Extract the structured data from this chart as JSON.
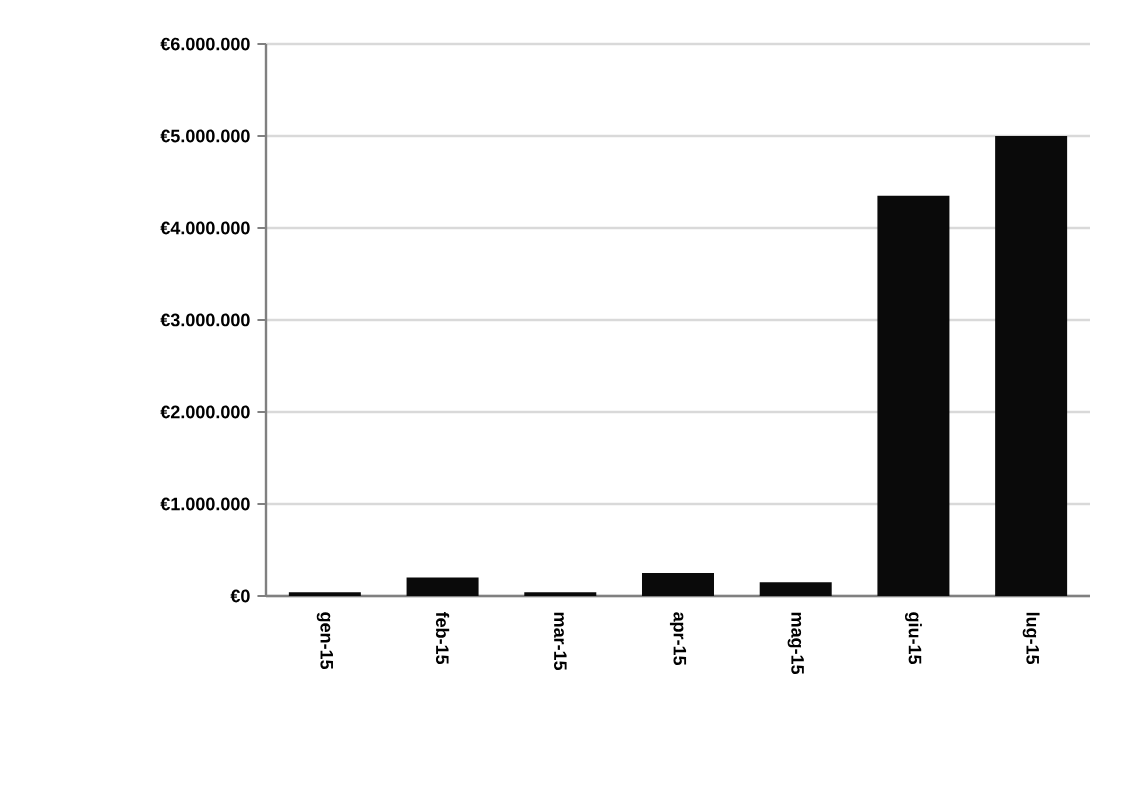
{
  "chart_data": {
    "type": "bar",
    "categories": [
      "gen-15",
      "feb-15",
      "mar-15",
      "apr-15",
      "mag-15",
      "giu-15",
      "lug-15"
    ],
    "values": [
      40000,
      200000,
      40000,
      250000,
      150000,
      4350000,
      5000000
    ],
    "color": "#0a0a0a",
    "ylim": [
      0,
      6000000
    ],
    "yticks": [
      {
        "value": 0,
        "label": "€0"
      },
      {
        "value": 1000000,
        "label": "€1.000.000"
      },
      {
        "value": 2000000,
        "label": "€2.000.000"
      },
      {
        "value": 3000000,
        "label": "€3.000.000"
      },
      {
        "value": 4000000,
        "label": "€4.000.000"
      },
      {
        "value": 5000000,
        "label": "€5.000.000"
      },
      {
        "value": 6000000,
        "label": "€6.000.000"
      }
    ],
    "grid": "y"
  }
}
